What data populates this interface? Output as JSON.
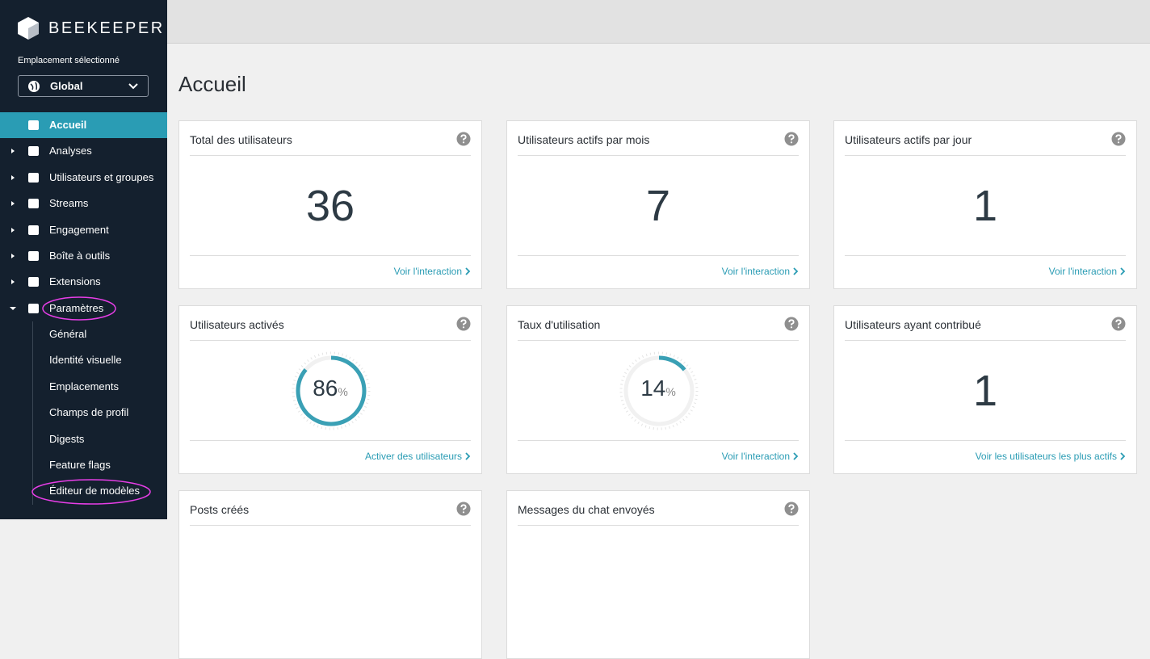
{
  "sidebar": {
    "brand": "BEEKEEPER",
    "location_label": "Emplacement sélectionné",
    "location": "Global",
    "nav": [
      {
        "label": "Accueil",
        "state": "active"
      },
      {
        "label": "Analyses",
        "state": "collapsed"
      },
      {
        "label": "Utilisateurs et groupes",
        "state": "collapsed"
      },
      {
        "label": "Streams",
        "state": "collapsed"
      },
      {
        "label": "Engagement",
        "state": "collapsed"
      },
      {
        "label": "Boîte à outils",
        "state": "collapsed"
      },
      {
        "label": "Extensions",
        "state": "collapsed"
      },
      {
        "label": "Paramètres",
        "state": "expanded"
      }
    ],
    "sub_nav": [
      "Général",
      "Identité visuelle",
      "Emplacements",
      "Champs de profil",
      "Digests",
      "Feature flags",
      "Éditeur de modèles"
    ]
  },
  "page_title": "Accueil",
  "cards": [
    {
      "title": "Total des utilisateurs",
      "value": 36,
      "link": "Voir l'interaction"
    },
    {
      "title": "Utilisateurs actifs par mois",
      "value": 7,
      "link": "Voir l'interaction"
    },
    {
      "title": "Utilisateurs actifs par jour",
      "value": 1,
      "link": "Voir l'interaction"
    },
    {
      "title": "Utilisateurs activés",
      "value": 86,
      "unit": "%",
      "link": "Activer des utilisateurs"
    },
    {
      "title": "Taux d'utilisation",
      "value": 14,
      "unit": "%",
      "link": "Voir l'interaction"
    },
    {
      "title": "Utilisateurs ayant contribué",
      "value": 1,
      "link": "Voir les utilisateurs les plus actifs"
    },
    {
      "title": "Posts créés"
    },
    {
      "title": "Messages du chat envoyés"
    }
  ]
}
